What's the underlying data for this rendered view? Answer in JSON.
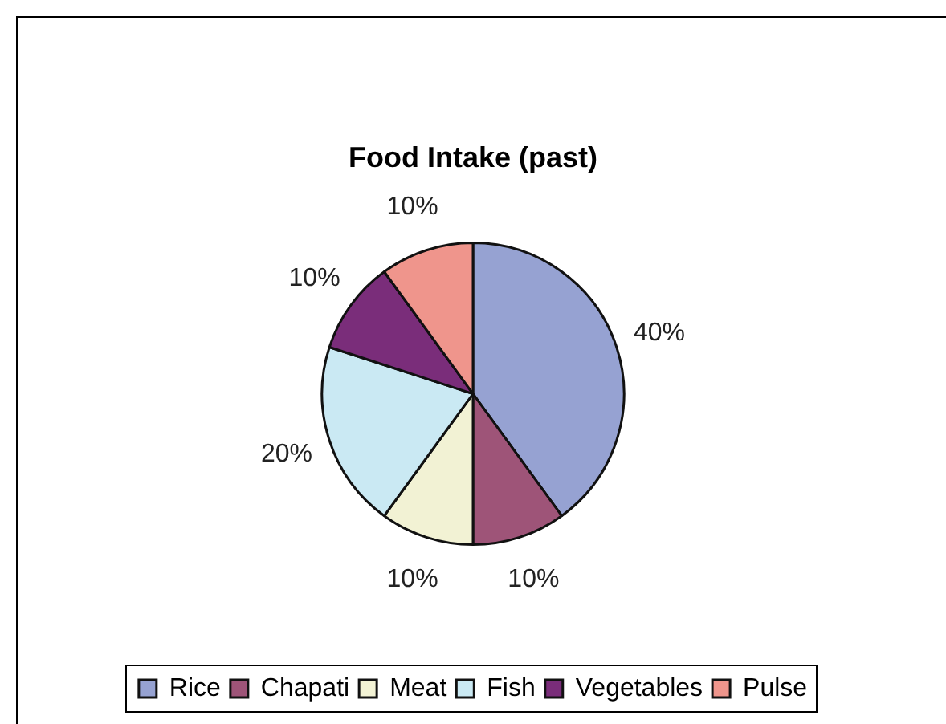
{
  "chart_data": {
    "type": "pie",
    "title": "Food Intake (past)",
    "categories": [
      "Rice",
      "Chapati",
      "Meat",
      "Fish",
      "Vegetables",
      "Pulse"
    ],
    "values": [
      40,
      10,
      10,
      20,
      10,
      10
    ],
    "colors": [
      "#96a2d2",
      "#9e5478",
      "#f2f2d4",
      "#cae9f3",
      "#7a2d7a",
      "#ef958c"
    ],
    "value_labels": [
      "40%",
      "10%",
      "10%",
      "20%",
      "10%",
      "10%"
    ],
    "legend": "bottom"
  }
}
